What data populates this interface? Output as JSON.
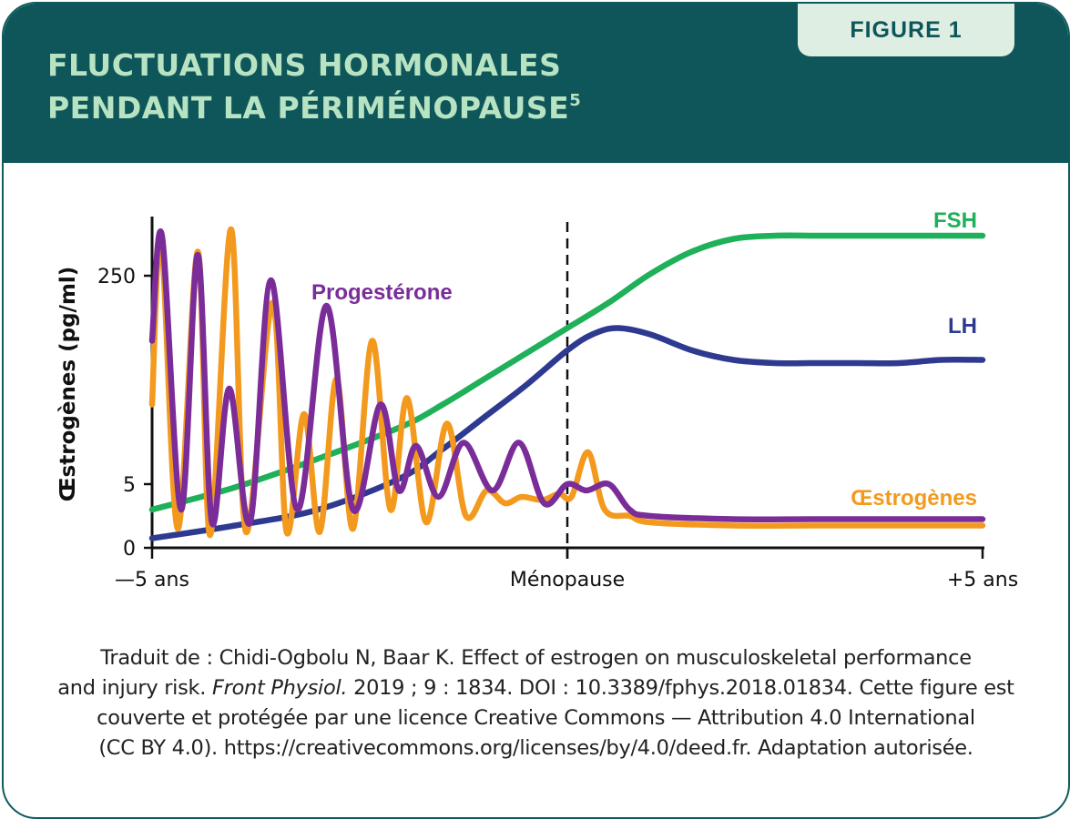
{
  "header": {
    "title_line1": "FLUCTUATIONS HORMONALES",
    "title_line2": "PENDANT LA PÉRIMÉNOPAUSE",
    "title_sup": "5",
    "badge": "FIGURE 1"
  },
  "colors": {
    "header_bg": "#0e565a",
    "title": "#b8e3c3",
    "badge_bg": "#dfeee3",
    "fsh": "#1fb05a",
    "lh": "#2e3a8f",
    "progesterone": "#7a2d98",
    "oestrogenes": "#f39a1e"
  },
  "chart_data": {
    "type": "line",
    "title": "",
    "ylabel": "Œstrogènes (pg/ml)",
    "xlabel": "",
    "x_tick_labels": [
      "—5 ans",
      "Ménopause",
      "+5 ans"
    ],
    "x_ticks": [
      -5,
      0,
      5
    ],
    "y_tick_labels": [
      "0",
      "5",
      "250"
    ],
    "xlim": [
      -5,
      5
    ],
    "grid": false,
    "legend": "inline labels at line ends",
    "reference_line": {
      "x": 0,
      "style": "dashed",
      "label": "Ménopause"
    },
    "series": [
      {
        "name": "FSH",
        "color": "#1fb05a",
        "x": [
          -5.0,
          -4.0,
          -3.0,
          -2.0,
          -1.5,
          -1.0,
          -0.5,
          0.0,
          0.5,
          1.0,
          1.5,
          2.0,
          2.5,
          3.0,
          3.5,
          4.0,
          4.5,
          5.0
        ],
        "y": [
          0.12,
          0.19,
          0.28,
          0.38,
          0.45,
          0.53,
          0.61,
          0.69,
          0.77,
          0.86,
          0.93,
          0.97,
          0.98,
          0.98,
          0.98,
          0.98,
          0.98,
          0.98
        ]
      },
      {
        "name": "LH",
        "color": "#2e3a8f",
        "x": [
          -5.0,
          -4.0,
          -3.0,
          -2.0,
          -1.5,
          -1.0,
          -0.5,
          0.0,
          0.3,
          0.6,
          1.0,
          1.5,
          2.0,
          2.5,
          3.0,
          3.5,
          4.0,
          4.5,
          5.0
        ],
        "y": [
          0.03,
          0.07,
          0.12,
          0.22,
          0.31,
          0.41,
          0.51,
          0.62,
          0.67,
          0.69,
          0.67,
          0.62,
          0.59,
          0.58,
          0.58,
          0.58,
          0.58,
          0.59,
          0.59
        ]
      },
      {
        "name": "Progestérone",
        "color": "#7a2d98",
        "x": [
          -5.0,
          -4.88,
          -4.65,
          -4.45,
          -4.28,
          -4.07,
          -3.82,
          -3.57,
          -3.25,
          -2.9,
          -2.58,
          -2.25,
          -2.03,
          -1.82,
          -1.55,
          -1.25,
          -0.9,
          -0.58,
          -0.28,
          0.0,
          0.23,
          0.5,
          0.75,
          1.0,
          2.0,
          3.0,
          4.0,
          5.0
        ],
        "y": [
          0.65,
          0.98,
          0.12,
          0.92,
          0.08,
          0.5,
          0.08,
          0.84,
          0.12,
          0.76,
          0.12,
          0.45,
          0.18,
          0.32,
          0.16,
          0.33,
          0.18,
          0.33,
          0.14,
          0.2,
          0.18,
          0.2,
          0.12,
          0.1,
          0.09,
          0.09,
          0.09,
          0.09
        ]
      },
      {
        "name": "Œstrogènes",
        "color": "#f39a1e",
        "x": [
          -5.0,
          -4.89,
          -4.69,
          -4.45,
          -4.3,
          -4.05,
          -3.87,
          -3.55,
          -3.38,
          -3.17,
          -2.98,
          -2.78,
          -2.58,
          -2.35,
          -2.13,
          -1.93,
          -1.7,
          -1.45,
          -1.22,
          -0.97,
          -0.75,
          -0.55,
          -0.3,
          -0.1,
          0.05,
          0.25,
          0.45,
          0.75,
          1.0,
          2.0,
          3.0,
          4.0,
          5.0
        ],
        "y": [
          0.45,
          0.97,
          0.06,
          0.93,
          0.04,
          1.0,
          0.05,
          0.77,
          0.05,
          0.42,
          0.05,
          0.53,
          0.06,
          0.65,
          0.12,
          0.47,
          0.08,
          0.39,
          0.1,
          0.18,
          0.14,
          0.16,
          0.15,
          0.17,
          0.16,
          0.3,
          0.12,
          0.1,
          0.08,
          0.07,
          0.07,
          0.07,
          0.07
        ]
      }
    ]
  },
  "source": {
    "line1": "Traduit de : Chidi-Ogbolu N, Baar K. Effect of estrogen on musculoskeletal performance",
    "line2_pre": "and injury risk. ",
    "line2_journal": "Front Physiol.",
    "line2_post": " 2019 ; 9 : 1834. DOI : 10.3389/fphys.2018.01834. Cette figure est",
    "line3": "couverte et protégée par une licence Creative Commons — Attribution 4.0 International",
    "line4": "(CC BY 4.0). https://creativecommons.org/licenses/by/4.0/deed.fr. Adaptation autorisée."
  }
}
